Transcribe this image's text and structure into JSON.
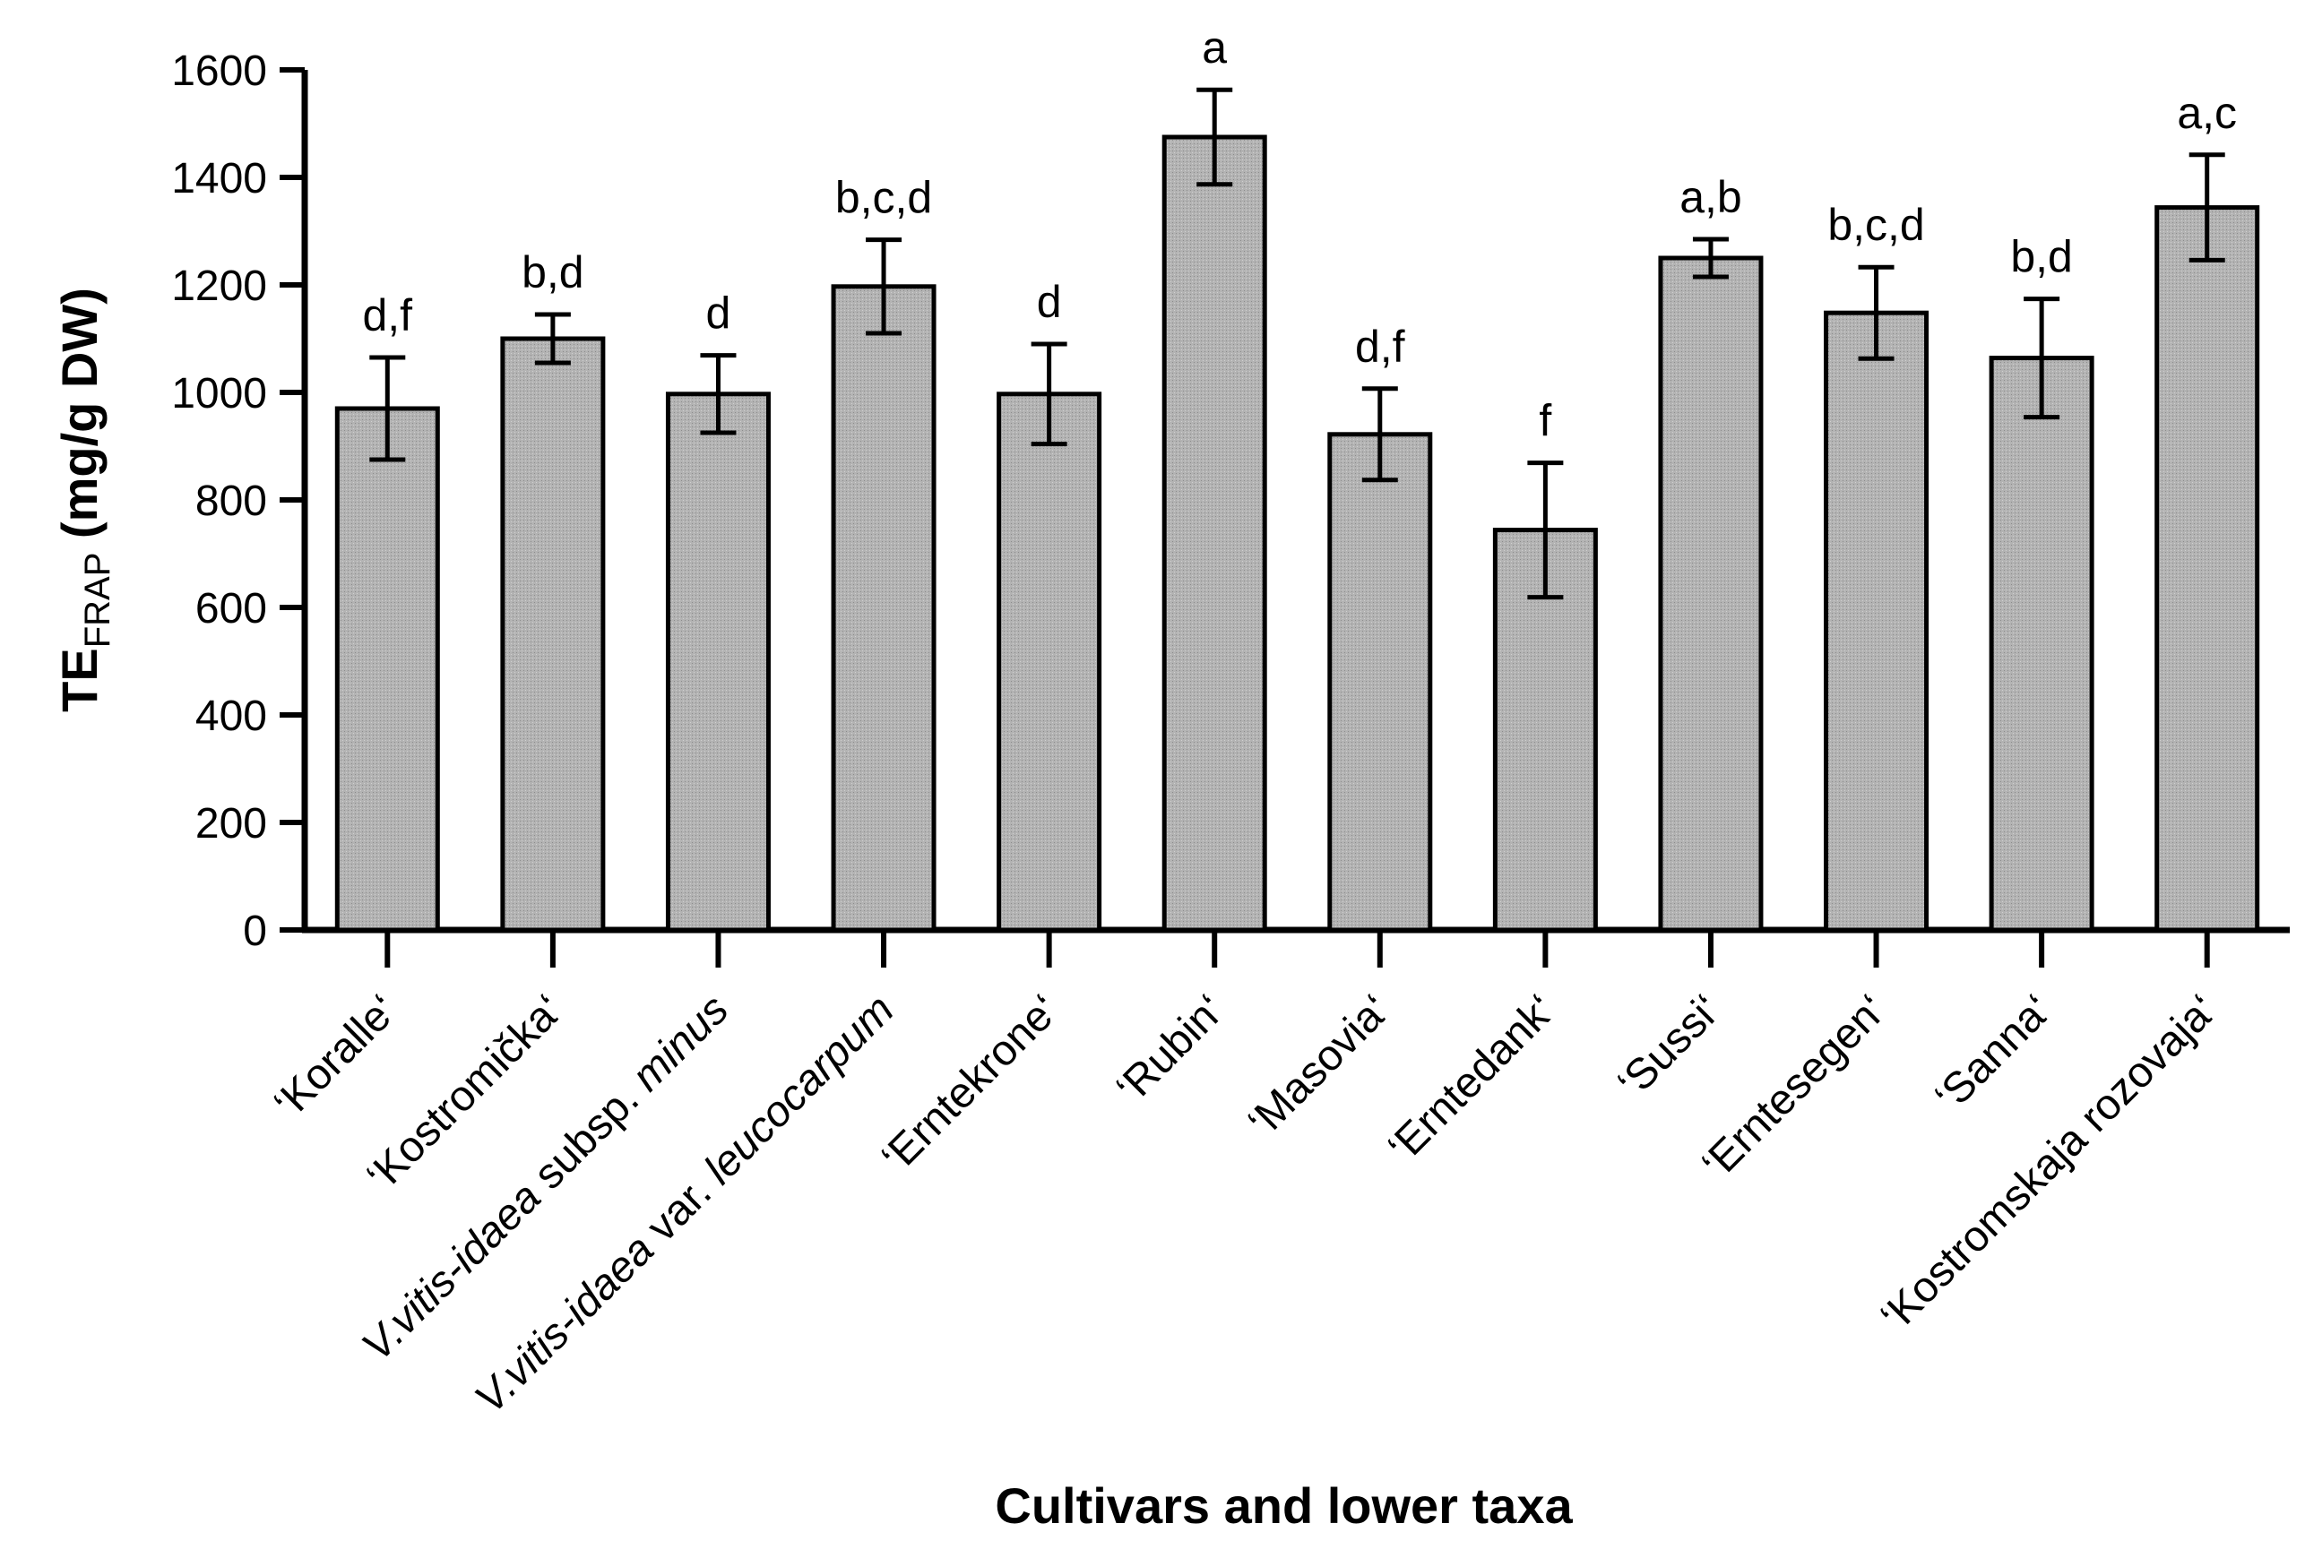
{
  "chart_data": {
    "type": "bar",
    "title": "",
    "xlabel": "Cultivars and lower taxa",
    "ylabel": {
      "main": "TE",
      "subscript": "FRAP",
      "unit": " (mg/g DW)"
    },
    "ylim": [
      0,
      1600
    ],
    "yticks": [
      0,
      200,
      400,
      600,
      800,
      1000,
      1200,
      1400,
      1600
    ],
    "grid": false,
    "legend": "none",
    "bar_color": "#b3b3b3",
    "edge_color": "#000000",
    "categories": [
      [
        {
          "t": "‘Koralle‘",
          "i": false
        }
      ],
      [
        {
          "t": "‘Kostromička‘",
          "i": false
        }
      ],
      [
        {
          "t": "V.vitis-idaea",
          "i": true
        },
        {
          "t": " subsp. ",
          "i": false
        },
        {
          "t": "minus",
          "i": true
        }
      ],
      [
        {
          "t": "V.vitis-idaea",
          "i": true
        },
        {
          "t": " var. ",
          "i": false
        },
        {
          "t": "leucocarpum",
          "i": true
        }
      ],
      [
        {
          "t": "‘Erntekrone‘",
          "i": false
        }
      ],
      [
        {
          "t": "‘Rubin‘",
          "i": false
        }
      ],
      [
        {
          "t": "‘Masovia‘",
          "i": false
        }
      ],
      [
        {
          "t": "‘Erntedank‘",
          "i": false
        }
      ],
      [
        {
          "t": "‘Sussi‘",
          "i": false
        }
      ],
      [
        {
          "t": "‘Erntesegen‘",
          "i": false
        }
      ],
      [
        {
          "t": "‘Sanna‘",
          "i": false
        }
      ],
      [
        {
          "t": "‘Kostromskaja rozovaja‘",
          "i": false
        }
      ]
    ],
    "values": [
      970,
      1100,
      997,
      1197,
      997,
      1475,
      922,
      744,
      1250,
      1148,
      1064,
      1344
    ],
    "errors": [
      95,
      45,
      72,
      87,
      93,
      88,
      85,
      125,
      35,
      85,
      110,
      98
    ],
    "significance": [
      "d,f",
      "b,d",
      "d",
      "b,c,d",
      "d",
      "a",
      "d,f",
      "f",
      "a,b",
      "b,c,d",
      "b,d",
      "a,c"
    ]
  }
}
